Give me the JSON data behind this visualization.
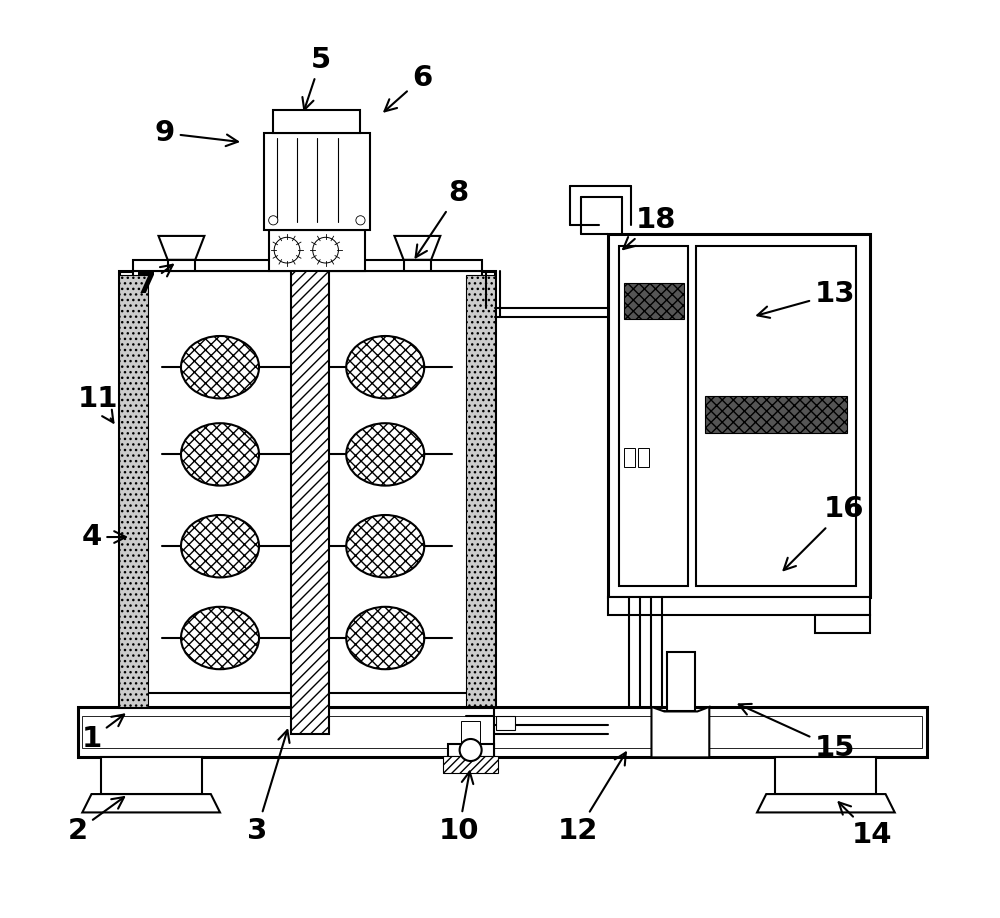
{
  "bg_color": "#ffffff",
  "lw": 1.5,
  "tlw": 2.2,
  "fig_width": 10.0,
  "fig_height": 9.18,
  "labels_data": {
    "1": [
      0.055,
      0.195,
      0.095,
      0.225
    ],
    "2": [
      0.04,
      0.095,
      0.095,
      0.135
    ],
    "3": [
      0.235,
      0.095,
      0.27,
      0.21
    ],
    "4": [
      0.055,
      0.415,
      0.098,
      0.415
    ],
    "5": [
      0.305,
      0.935,
      0.285,
      0.875
    ],
    "6": [
      0.415,
      0.915,
      0.37,
      0.875
    ],
    "7": [
      0.115,
      0.69,
      0.148,
      0.715
    ],
    "8": [
      0.455,
      0.79,
      0.405,
      0.715
    ],
    "9": [
      0.135,
      0.855,
      0.22,
      0.845
    ],
    "10": [
      0.455,
      0.095,
      0.468,
      0.165
    ],
    "11": [
      0.062,
      0.565,
      0.082,
      0.535
    ],
    "12": [
      0.585,
      0.095,
      0.64,
      0.185
    ],
    "13": [
      0.865,
      0.68,
      0.775,
      0.655
    ],
    "14": [
      0.905,
      0.09,
      0.865,
      0.13
    ],
    "15": [
      0.865,
      0.185,
      0.755,
      0.235
    ],
    "16": [
      0.875,
      0.445,
      0.805,
      0.375
    ],
    "18": [
      0.67,
      0.76,
      0.63,
      0.725
    ]
  }
}
